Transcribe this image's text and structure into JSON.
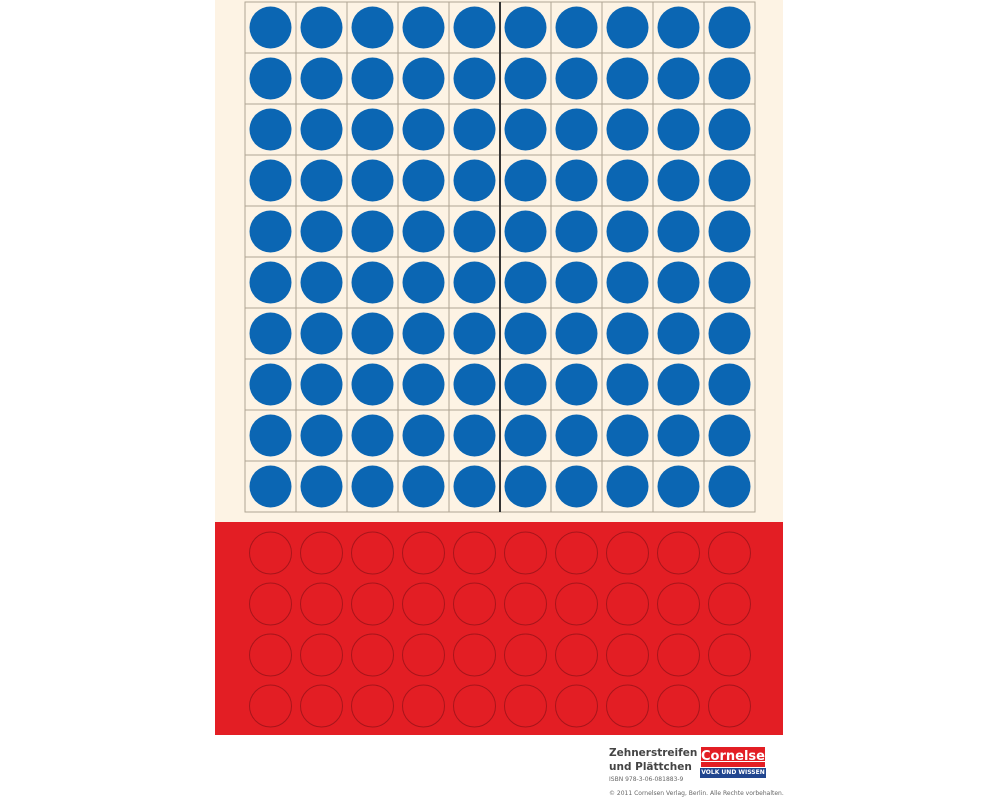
{
  "colors": {
    "paper": "#fdf3e4",
    "grid_line": "#b0a593",
    "blue_dot": "#0b66b3",
    "center_line": "#333333",
    "red_panel": "#e31e24",
    "red_circle_outline": "#a8151b"
  },
  "grid": {
    "rows": 10,
    "cols": 10,
    "filled": "all"
  },
  "red_panel": {
    "rows": 4,
    "cols": 10
  },
  "footer": {
    "title_line1": "Zehnerstreifen",
    "title_line2": "und Plättchen",
    "isbn": "ISBN  978-3-06-081883-9",
    "copyright": "© 2011 Cornelsen Verlag, Berlin. Alle Rechte vorbehalten.",
    "logo_top": "Cornelsen",
    "logo_bottom": "VOLK UND WISSEN"
  }
}
